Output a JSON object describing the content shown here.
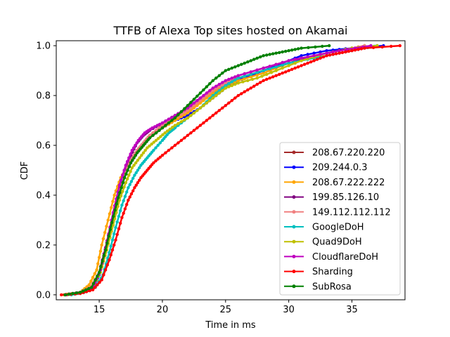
{
  "chart_data": {
    "type": "line",
    "title": "TTFB of Alexa Top sites hosted on Akamai",
    "xlabel": "Time in ms",
    "ylabel": "CDF",
    "xlim": [
      11.6,
      39.2
    ],
    "ylim": [
      -0.02,
      1.02
    ],
    "xticks": [
      15,
      20,
      25,
      30,
      35
    ],
    "yticks": [
      0.0,
      0.2,
      0.4,
      0.6,
      0.8,
      1.0
    ],
    "xtick_labels": [
      "15",
      "20",
      "25",
      "30",
      "35"
    ],
    "ytick_labels": [
      "0.0",
      "0.2",
      "0.4",
      "0.6",
      "0.8",
      "1.0"
    ],
    "grid": false,
    "legend_position": "lower-right",
    "series": [
      {
        "name": "208.67.220.220",
        "color": "#a52a2a",
        "points": [
          [
            12.3,
            0.0
          ],
          [
            13.5,
            0.01
          ],
          [
            14.3,
            0.03
          ],
          [
            15.0,
            0.08
          ],
          [
            15.5,
            0.18
          ],
          [
            16.0,
            0.29
          ],
          [
            16.5,
            0.4
          ],
          [
            17.0,
            0.48
          ],
          [
            17.5,
            0.54
          ],
          [
            18.0,
            0.58
          ],
          [
            18.5,
            0.61
          ],
          [
            19.0,
            0.64
          ],
          [
            20.0,
            0.68
          ],
          [
            21.0,
            0.71
          ],
          [
            22.0,
            0.74
          ],
          [
            23.0,
            0.78
          ],
          [
            24.0,
            0.82
          ],
          [
            25.0,
            0.85
          ],
          [
            26.0,
            0.87
          ],
          [
            28.0,
            0.9
          ],
          [
            30.0,
            0.93
          ],
          [
            32.0,
            0.96
          ],
          [
            34.0,
            0.98
          ],
          [
            36.0,
            1.0
          ]
        ]
      },
      {
        "name": "209.244.0.3",
        "color": "#0000ff",
        "points": [
          [
            12.4,
            0.0
          ],
          [
            13.5,
            0.01
          ],
          [
            14.5,
            0.03
          ],
          [
            15.0,
            0.08
          ],
          [
            15.5,
            0.17
          ],
          [
            16.0,
            0.28
          ],
          [
            16.5,
            0.39
          ],
          [
            17.0,
            0.47
          ],
          [
            17.5,
            0.53
          ],
          [
            18.0,
            0.57
          ],
          [
            18.5,
            0.6
          ],
          [
            19.0,
            0.63
          ],
          [
            20.0,
            0.67
          ],
          [
            21.0,
            0.7
          ],
          [
            22.0,
            0.72
          ],
          [
            23.0,
            0.75
          ],
          [
            24.0,
            0.79
          ],
          [
            25.0,
            0.83
          ],
          [
            26.0,
            0.86
          ],
          [
            27.0,
            0.88
          ],
          [
            29.0,
            0.92
          ],
          [
            31.0,
            0.96
          ],
          [
            33.0,
            0.98
          ],
          [
            35.0,
            0.99
          ],
          [
            37.5,
            1.0
          ]
        ]
      },
      {
        "name": "208.67.222.222",
        "color": "#ffa500",
        "points": [
          [
            12.2,
            0.0
          ],
          [
            13.5,
            0.01
          ],
          [
            14.2,
            0.04
          ],
          [
            14.8,
            0.1
          ],
          [
            15.2,
            0.2
          ],
          [
            15.7,
            0.3
          ],
          [
            16.2,
            0.4
          ],
          [
            16.7,
            0.47
          ],
          [
            17.3,
            0.52
          ],
          [
            18.0,
            0.57
          ],
          [
            18.5,
            0.6
          ],
          [
            19.0,
            0.63
          ],
          [
            20.0,
            0.67
          ],
          [
            21.0,
            0.7
          ],
          [
            22.0,
            0.73
          ],
          [
            23.0,
            0.77
          ],
          [
            24.0,
            0.81
          ],
          [
            25.0,
            0.84
          ],
          [
            26.0,
            0.86
          ],
          [
            28.0,
            0.89
          ],
          [
            30.0,
            0.93
          ],
          [
            32.0,
            0.96
          ],
          [
            34.0,
            0.98
          ],
          [
            36.0,
            1.0
          ]
        ]
      },
      {
        "name": "199.85.126.10",
        "color": "#800080",
        "points": [
          [
            12.3,
            0.0
          ],
          [
            13.5,
            0.01
          ],
          [
            14.4,
            0.03
          ],
          [
            15.0,
            0.09
          ],
          [
            15.5,
            0.19
          ],
          [
            16.0,
            0.3
          ],
          [
            16.5,
            0.41
          ],
          [
            17.0,
            0.5
          ],
          [
            17.5,
            0.56
          ],
          [
            18.0,
            0.61
          ],
          [
            18.5,
            0.64
          ],
          [
            19.0,
            0.66
          ],
          [
            20.0,
            0.69
          ],
          [
            21.0,
            0.72
          ],
          [
            22.0,
            0.75
          ],
          [
            23.0,
            0.79
          ],
          [
            24.0,
            0.82
          ],
          [
            25.0,
            0.85
          ],
          [
            26.0,
            0.87
          ],
          [
            28.0,
            0.9
          ],
          [
            30.0,
            0.93
          ],
          [
            32.0,
            0.96
          ],
          [
            34.0,
            0.98
          ],
          [
            36.5,
            1.0
          ]
        ]
      },
      {
        "name": "149.112.112.112",
        "color": "#f08080",
        "points": [
          [
            12.3,
            0.0
          ],
          [
            13.5,
            0.01
          ],
          [
            14.3,
            0.03
          ],
          [
            15.0,
            0.09
          ],
          [
            15.5,
            0.18
          ],
          [
            16.0,
            0.29
          ],
          [
            16.5,
            0.4
          ],
          [
            17.0,
            0.48
          ],
          [
            17.5,
            0.54
          ],
          [
            18.0,
            0.58
          ],
          [
            18.5,
            0.61
          ],
          [
            19.0,
            0.64
          ],
          [
            20.0,
            0.68
          ],
          [
            21.0,
            0.71
          ],
          [
            22.0,
            0.74
          ],
          [
            23.0,
            0.78
          ],
          [
            24.0,
            0.82
          ],
          [
            25.0,
            0.85
          ],
          [
            26.0,
            0.88
          ],
          [
            28.0,
            0.91
          ],
          [
            30.0,
            0.94
          ],
          [
            32.0,
            0.96
          ],
          [
            34.0,
            0.98
          ],
          [
            36.0,
            1.0
          ]
        ]
      },
      {
        "name": "GoogleDoH",
        "color": "#00bfbf",
        "points": [
          [
            12.8,
            0.0
          ],
          [
            13.8,
            0.01
          ],
          [
            14.7,
            0.03
          ],
          [
            15.3,
            0.08
          ],
          [
            15.8,
            0.17
          ],
          [
            16.3,
            0.27
          ],
          [
            16.8,
            0.36
          ],
          [
            17.3,
            0.43
          ],
          [
            17.8,
            0.48
          ],
          [
            18.3,
            0.52
          ],
          [
            18.8,
            0.55
          ],
          [
            19.3,
            0.58
          ],
          [
            20.0,
            0.62
          ],
          [
            20.5,
            0.65
          ],
          [
            21.0,
            0.67
          ],
          [
            22.0,
            0.71
          ],
          [
            23.0,
            0.75
          ],
          [
            24.0,
            0.8
          ],
          [
            25.0,
            0.84
          ],
          [
            26.0,
            0.87
          ],
          [
            28.0,
            0.9
          ],
          [
            30.0,
            0.93
          ],
          [
            32.0,
            0.95
          ],
          [
            34.0,
            0.97
          ],
          [
            36.0,
            0.99
          ],
          [
            37.0,
            1.0
          ]
        ]
      },
      {
        "name": "Quad9DoH",
        "color": "#bfbf00",
        "points": [
          [
            12.5,
            0.0
          ],
          [
            13.6,
            0.01
          ],
          [
            14.5,
            0.03
          ],
          [
            15.1,
            0.09
          ],
          [
            15.6,
            0.18
          ],
          [
            16.1,
            0.28
          ],
          [
            16.6,
            0.38
          ],
          [
            17.1,
            0.45
          ],
          [
            17.6,
            0.51
          ],
          [
            18.2,
            0.55
          ],
          [
            18.8,
            0.59
          ],
          [
            19.5,
            0.62
          ],
          [
            20.2,
            0.65
          ],
          [
            21.0,
            0.68
          ],
          [
            22.0,
            0.71
          ],
          [
            23.0,
            0.75
          ],
          [
            24.0,
            0.79
          ],
          [
            25.0,
            0.83
          ],
          [
            26.0,
            0.85
          ],
          [
            27.5,
            0.87
          ],
          [
            29.0,
            0.9
          ],
          [
            31.0,
            0.94
          ],
          [
            33.0,
            0.97
          ],
          [
            35.0,
            0.99
          ],
          [
            37.0,
            1.0
          ]
        ]
      },
      {
        "name": "CloudflareDoH",
        "color": "#bf00bf",
        "points": [
          [
            12.4,
            0.0
          ],
          [
            13.6,
            0.01
          ],
          [
            14.5,
            0.03
          ],
          [
            15.1,
            0.1
          ],
          [
            15.6,
            0.21
          ],
          [
            16.1,
            0.33
          ],
          [
            16.6,
            0.44
          ],
          [
            17.1,
            0.52
          ],
          [
            17.6,
            0.58
          ],
          [
            18.1,
            0.62
          ],
          [
            18.6,
            0.65
          ],
          [
            19.2,
            0.67
          ],
          [
            20.0,
            0.69
          ],
          [
            21.0,
            0.72
          ],
          [
            22.0,
            0.75
          ],
          [
            23.0,
            0.79
          ],
          [
            24.0,
            0.83
          ],
          [
            25.0,
            0.86
          ],
          [
            26.0,
            0.88
          ],
          [
            28.0,
            0.91
          ],
          [
            30.0,
            0.94
          ],
          [
            32.0,
            0.96
          ],
          [
            34.0,
            0.98
          ],
          [
            36.5,
            1.0
          ]
        ]
      },
      {
        "name": "Sharding",
        "color": "#ff0000",
        "points": [
          [
            12.0,
            0.0
          ],
          [
            13.5,
            0.005
          ],
          [
            14.5,
            0.02
          ],
          [
            15.2,
            0.06
          ],
          [
            15.8,
            0.14
          ],
          [
            16.3,
            0.22
          ],
          [
            16.8,
            0.31
          ],
          [
            17.3,
            0.38
          ],
          [
            17.8,
            0.43
          ],
          [
            18.3,
            0.47
          ],
          [
            18.8,
            0.5
          ],
          [
            19.3,
            0.53
          ],
          [
            20.0,
            0.56
          ],
          [
            21.0,
            0.6
          ],
          [
            22.0,
            0.64
          ],
          [
            23.0,
            0.68
          ],
          [
            24.0,
            0.72
          ],
          [
            25.0,
            0.76
          ],
          [
            26.0,
            0.8
          ],
          [
            27.0,
            0.83
          ],
          [
            28.0,
            0.86
          ],
          [
            29.0,
            0.88
          ],
          [
            30.0,
            0.9
          ],
          [
            31.0,
            0.92
          ],
          [
            32.0,
            0.94
          ],
          [
            33.0,
            0.96
          ],
          [
            34.0,
            0.97
          ],
          [
            35.0,
            0.98
          ],
          [
            36.0,
            0.99
          ],
          [
            38.8,
            1.0
          ]
        ]
      },
      {
        "name": "SubRosa",
        "color": "#008000",
        "points": [
          [
            12.3,
            0.0
          ],
          [
            13.5,
            0.01
          ],
          [
            14.4,
            0.03
          ],
          [
            15.0,
            0.09
          ],
          [
            15.5,
            0.18
          ],
          [
            16.0,
            0.29
          ],
          [
            16.5,
            0.39
          ],
          [
            17.0,
            0.47
          ],
          [
            17.5,
            0.53
          ],
          [
            18.0,
            0.57
          ],
          [
            18.5,
            0.6
          ],
          [
            19.0,
            0.63
          ],
          [
            20.0,
            0.67
          ],
          [
            21.0,
            0.71
          ],
          [
            22.0,
            0.76
          ],
          [
            23.0,
            0.81
          ],
          [
            24.0,
            0.86
          ],
          [
            25.0,
            0.9
          ],
          [
            26.0,
            0.92
          ],
          [
            27.0,
            0.94
          ],
          [
            28.0,
            0.96
          ],
          [
            29.0,
            0.97
          ],
          [
            30.0,
            0.98
          ],
          [
            31.0,
            0.99
          ],
          [
            33.2,
            1.0
          ]
        ]
      }
    ]
  }
}
